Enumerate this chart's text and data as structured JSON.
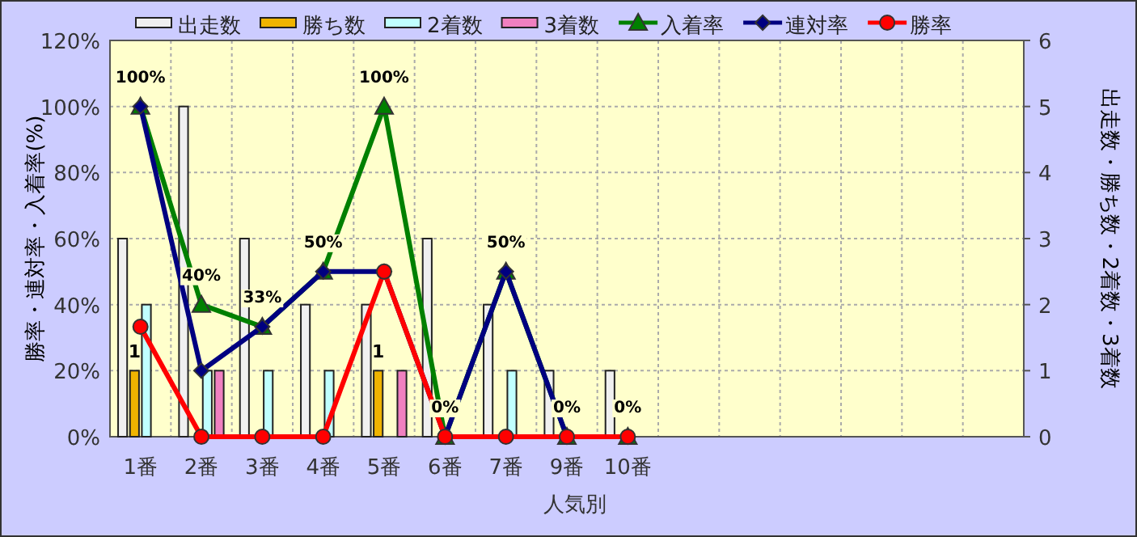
{
  "chart_data": {
    "type": "bar",
    "xlabel": "人気別",
    "ylabel": "勝率・連対率・入着率(%)",
    "y2label": "出走数・勝ち数・2着数・3着数",
    "categories": [
      "1番",
      "2番",
      "3番",
      "4番",
      "5番",
      "6番",
      "7番",
      "9番",
      "10番",
      null,
      null,
      null,
      null,
      null,
      null
    ],
    "series": [
      {
        "name": "出走数",
        "axis": "y2",
        "color": "#f0f0f0",
        "values": [
          3,
          5,
          3,
          2,
          2,
          3,
          2,
          1,
          1,
          null,
          null,
          null,
          null,
          null,
          null
        ]
      },
      {
        "name": "勝ち数",
        "axis": "y2",
        "color": "#f0b400",
        "values": [
          1,
          0,
          0,
          0,
          1,
          0,
          0,
          0,
          0,
          null,
          null,
          null,
          null,
          null,
          null
        ],
        "value_labels": [
          "1",
          null,
          null,
          null,
          "1",
          null,
          null,
          null,
          null,
          null,
          null,
          null,
          null,
          null,
          null
        ]
      },
      {
        "name": "2着数",
        "axis": "y2",
        "color": "#c0ffff",
        "values": [
          2,
          1,
          1,
          1,
          0,
          0,
          1,
          0,
          0,
          null,
          null,
          null,
          null,
          null,
          null
        ]
      },
      {
        "name": "3着数",
        "axis": "y2",
        "color": "#f080c0",
        "values": [
          0,
          1,
          0,
          0,
          1,
          0,
          0,
          0,
          0,
          null,
          null,
          null,
          null,
          null,
          null
        ]
      },
      {
        "name": "入着率",
        "type": "line",
        "marker": "triangle",
        "color": "#008000",
        "values": [
          100,
          40,
          33.3,
          50,
          100,
          0,
          50,
          0,
          0,
          null,
          null,
          null,
          null,
          null,
          null
        ],
        "value_labels": [
          "100%",
          "40%",
          "33%",
          "50%",
          "100%",
          "0%",
          "50%",
          "0%",
          "0%",
          null,
          null,
          null,
          null,
          null,
          null
        ]
      },
      {
        "name": "連対率",
        "type": "line",
        "marker": "diamond",
        "color": "#000080",
        "values": [
          100,
          20,
          33.3,
          50,
          50,
          0,
          50,
          0,
          0,
          null,
          null,
          null,
          null,
          null,
          null
        ]
      },
      {
        "name": "勝率",
        "type": "line",
        "marker": "circle",
        "color": "#ff0000",
        "values": [
          33.3,
          0,
          0,
          0,
          50,
          0,
          0,
          0,
          0,
          null,
          null,
          null,
          null,
          null,
          null
        ]
      }
    ],
    "ylim": [
      0,
      120
    ],
    "yticks": [
      {
        "value": 0,
        "label": "0%"
      },
      {
        "value": 20,
        "label": "20%"
      },
      {
        "value": 40,
        "label": "40%"
      },
      {
        "value": 60,
        "label": "60%"
      },
      {
        "value": 80,
        "label": "80%"
      },
      {
        "value": 100,
        "label": "100%"
      },
      {
        "value": 120,
        "label": "120%"
      }
    ],
    "y2lim": [
      0,
      6
    ],
    "y2ticks": [
      0,
      1,
      2,
      3,
      4,
      5,
      6
    ],
    "grid": true,
    "legend": "top"
  }
}
